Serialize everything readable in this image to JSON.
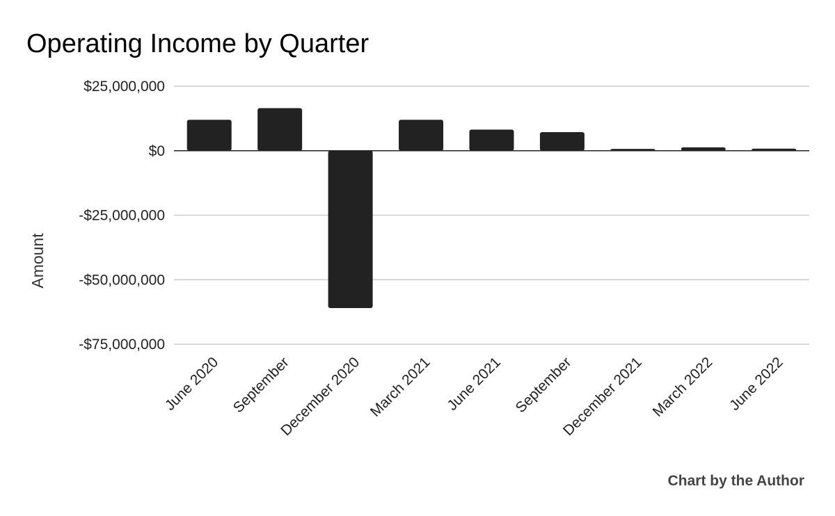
{
  "chart_data": {
    "type": "bar",
    "title": "Operating Income by Quarter",
    "xlabel": "",
    "ylabel": "Amount",
    "categories": [
      "June 2020",
      "September",
      "December 2020",
      "March 2021",
      "June 2021",
      "September",
      "December 2021",
      "March 2022",
      "June 2022"
    ],
    "values": [
      12000000,
      16500000,
      -61000000,
      12000000,
      8200000,
      7200000,
      700000,
      1300000,
      800000
    ],
    "ylim": [
      -75000000,
      25000000
    ],
    "yticks": [
      25000000,
      0,
      -25000000,
      -50000000,
      -75000000
    ],
    "ytick_labels": [
      "$25,000,000",
      "$0",
      "-$25,000,000",
      "-$50,000,000",
      "-$75,000,000"
    ],
    "grid": true,
    "legend": "none",
    "bar_color": "#222222"
  },
  "footer": {
    "credit": "Chart by the Author"
  }
}
